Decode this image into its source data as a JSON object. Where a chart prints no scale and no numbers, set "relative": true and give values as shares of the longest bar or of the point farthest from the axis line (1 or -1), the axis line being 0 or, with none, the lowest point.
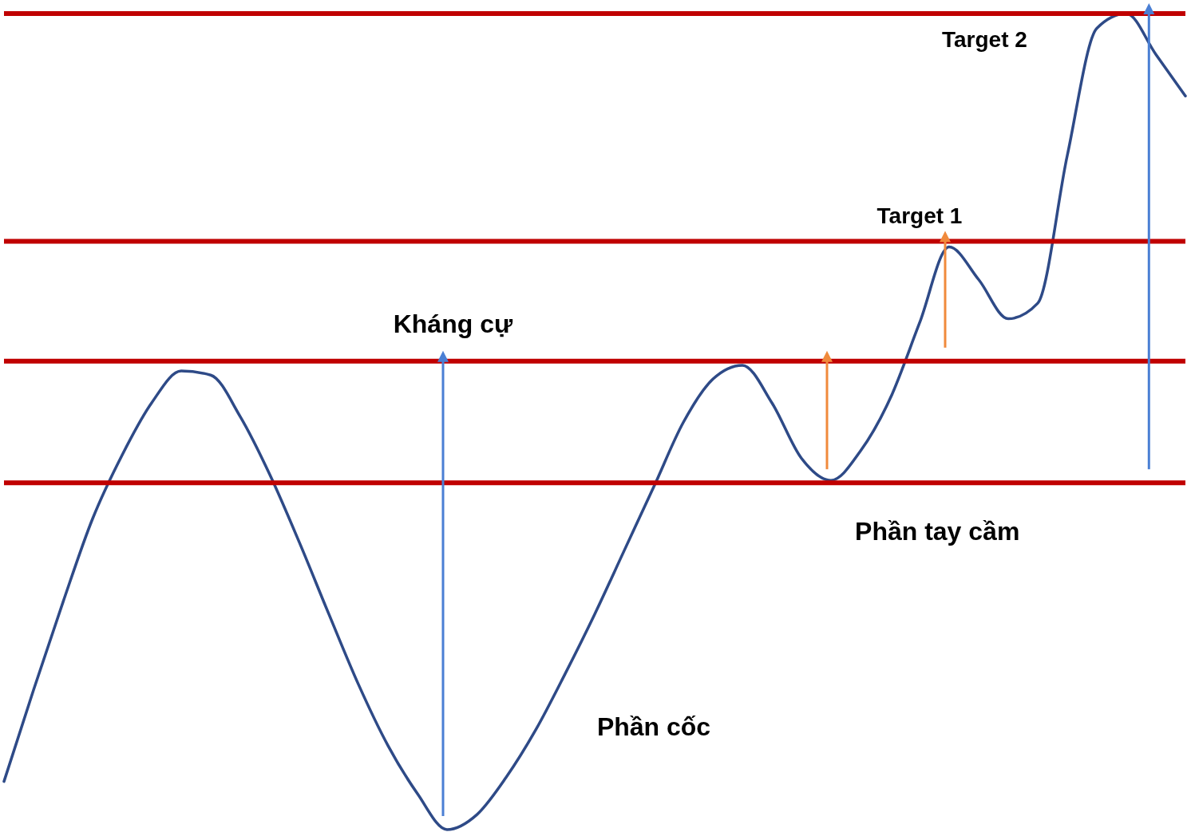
{
  "chart_data": {
    "type": "line",
    "relative": true,
    "categories": [
      null,
      null,
      null,
      null,
      null,
      null,
      null,
      null,
      null,
      null,
      null,
      null,
      null,
      null,
      null,
      null,
      null,
      null,
      null,
      null,
      null,
      null,
      null,
      null,
      null,
      null,
      null,
      null,
      null,
      null,
      null,
      null,
      null,
      null,
      null,
      null,
      null,
      null,
      null,
      null,
      null
    ],
    "series": [
      {
        "color": "#2e4a87",
        "values": [
          0.059,
          0.171,
          0.279,
          0.381,
          0.459,
          0.523,
          0.562,
          0.557,
          0.506,
          0.435,
          0.352,
          0.264,
          0.178,
          0.103,
          0.044,
          0,
          0.018,
          0.064,
          0.122,
          0.191,
          0.264,
          0.342,
          0.42,
          0.499,
          0.552,
          0.569,
          0.523,
          0.455,
          0.428,
          0.464,
          0.528,
          0.621,
          0.714,
          0.674,
          0.626,
          0.645,
          0.826,
          0.982,
          1,
          0.95,
          0.899
        ]
      }
    ],
    "ref_lines": [
      {
        "axis": "y",
        "value": 0.574,
        "label": "Kháng cự",
        "color": "#c00000"
      },
      {
        "axis": "y",
        "value": 0.425,
        "label": "Phần tay cầm",
        "color": "#c00000"
      },
      {
        "axis": "y",
        "value": 0.721,
        "label": "Target 1",
        "color": "#c00000"
      },
      {
        "axis": "y",
        "value": 1,
        "label": "Target 2",
        "color": "#c00000"
      }
    ],
    "annotations": [
      {
        "text": "Phần cốc"
      }
    ]
  }
}
